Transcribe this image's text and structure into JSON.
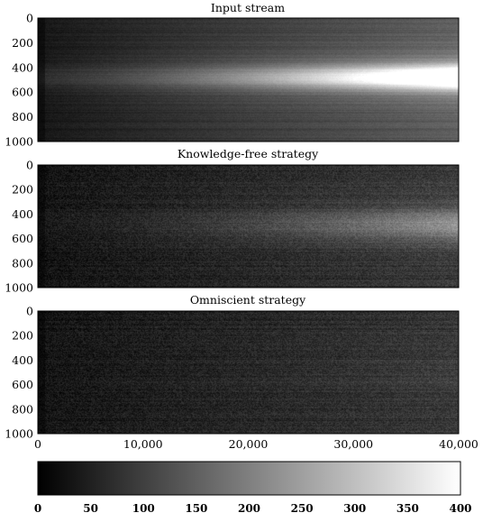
{
  "chart_data": [
    {
      "type": "heatmap",
      "title": "Input stream",
      "ylim": [
        1000,
        0
      ],
      "xlim": [
        0,
        40000
      ],
      "ytick_labels": [
        "0",
        "200",
        "400",
        "600",
        "800",
        "1000"
      ],
      "xtick_labels": [],
      "model": {
        "base": 35,
        "base_growth": 110,
        "ridge_center": 480,
        "ridge_width": 95,
        "ridge_peak_start": 40,
        "ridge_peak_end": 390,
        "band_center": 480,
        "band_width": 260,
        "band_gain": 60,
        "noise": 10,
        "row_noise": 14
      }
    },
    {
      "type": "heatmap",
      "title": "Knowledge-free strategy",
      "ylim": [
        1000,
        0
      ],
      "xlim": [
        0,
        40000
      ],
      "ytick_labels": [
        "0",
        "200",
        "400",
        "600",
        "800",
        "1000"
      ],
      "xtick_labels": [],
      "model": {
        "base": 30,
        "base_growth": 60,
        "ridge_center": 490,
        "ridge_width": 130,
        "ridge_peak_start": 10,
        "ridge_peak_end": 130,
        "band_center": 490,
        "band_width": 300,
        "band_gain": 20,
        "noise": 28,
        "row_noise": 14
      }
    },
    {
      "type": "heatmap",
      "title": "Omniscient strategy",
      "ylim": [
        1000,
        0
      ],
      "xlim": [
        0,
        40000
      ],
      "ytick_labels": [
        "0",
        "200",
        "400",
        "600",
        "800",
        "1000"
      ],
      "xtick_labels": [
        "0",
        "10,000",
        "20,000",
        "30,000",
        "40,000"
      ],
      "model": {
        "base": 32,
        "base_growth": 55,
        "ridge_center": 500,
        "ridge_width": 200,
        "ridge_peak_start": 0,
        "ridge_peak_end": 12,
        "band_center": 500,
        "band_width": 300,
        "band_gain": 0,
        "noise": 28,
        "row_noise": 14
      }
    }
  ],
  "colorbar": {
    "range": [
      0,
      400
    ],
    "tick_labels": [
      "0",
      "50",
      "100",
      "150",
      "200",
      "250",
      "300",
      "350",
      "400"
    ],
    "colormap": "gray",
    "color_low": "#000000",
    "color_high": "#ffffff"
  }
}
